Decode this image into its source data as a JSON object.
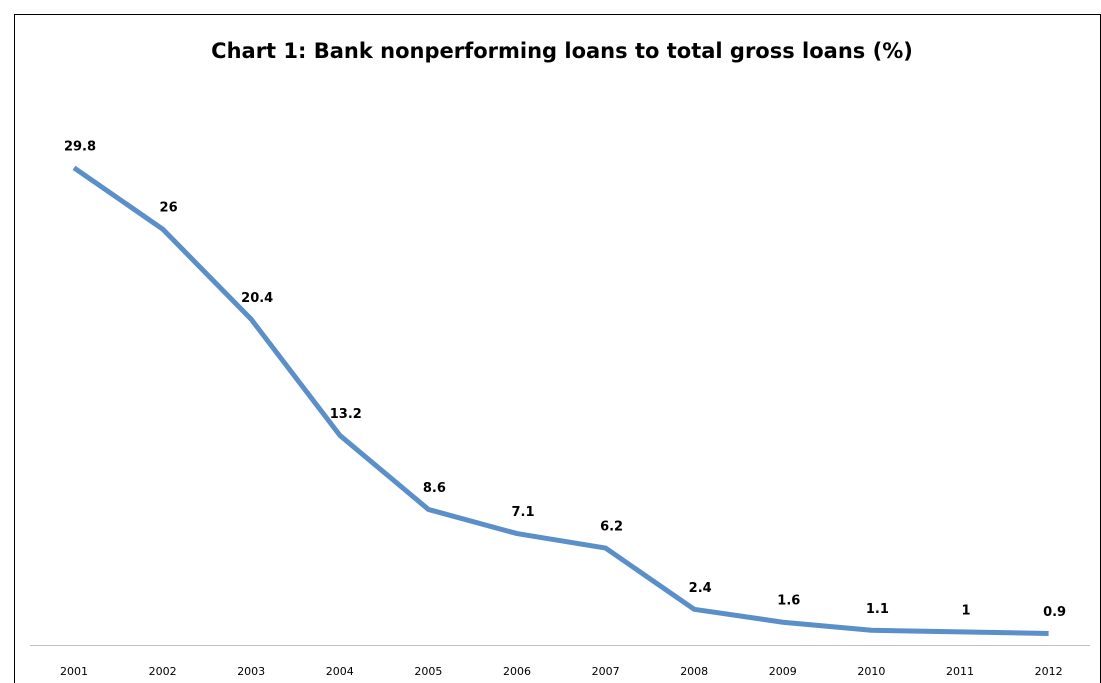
{
  "chart_data": {
    "type": "line",
    "title": "Chart 1: Bank nonperforming loans to total gross loans (%)",
    "categories": [
      "2001",
      "2002",
      "2003",
      "2004",
      "2005",
      "2006",
      "2007",
      "2008",
      "2009",
      "2010",
      "2011",
      "2012"
    ],
    "series": [
      {
        "name": "Bank nonperforming loans to total gross loans (%)",
        "color": "#5b8fc9",
        "values": [
          29.8,
          26,
          20.4,
          13.2,
          8.6,
          7.1,
          6.2,
          2.4,
          1.6,
          1.1,
          1,
          0.9
        ]
      }
    ],
    "ylim": [
      0,
      35
    ],
    "grid": false
  }
}
